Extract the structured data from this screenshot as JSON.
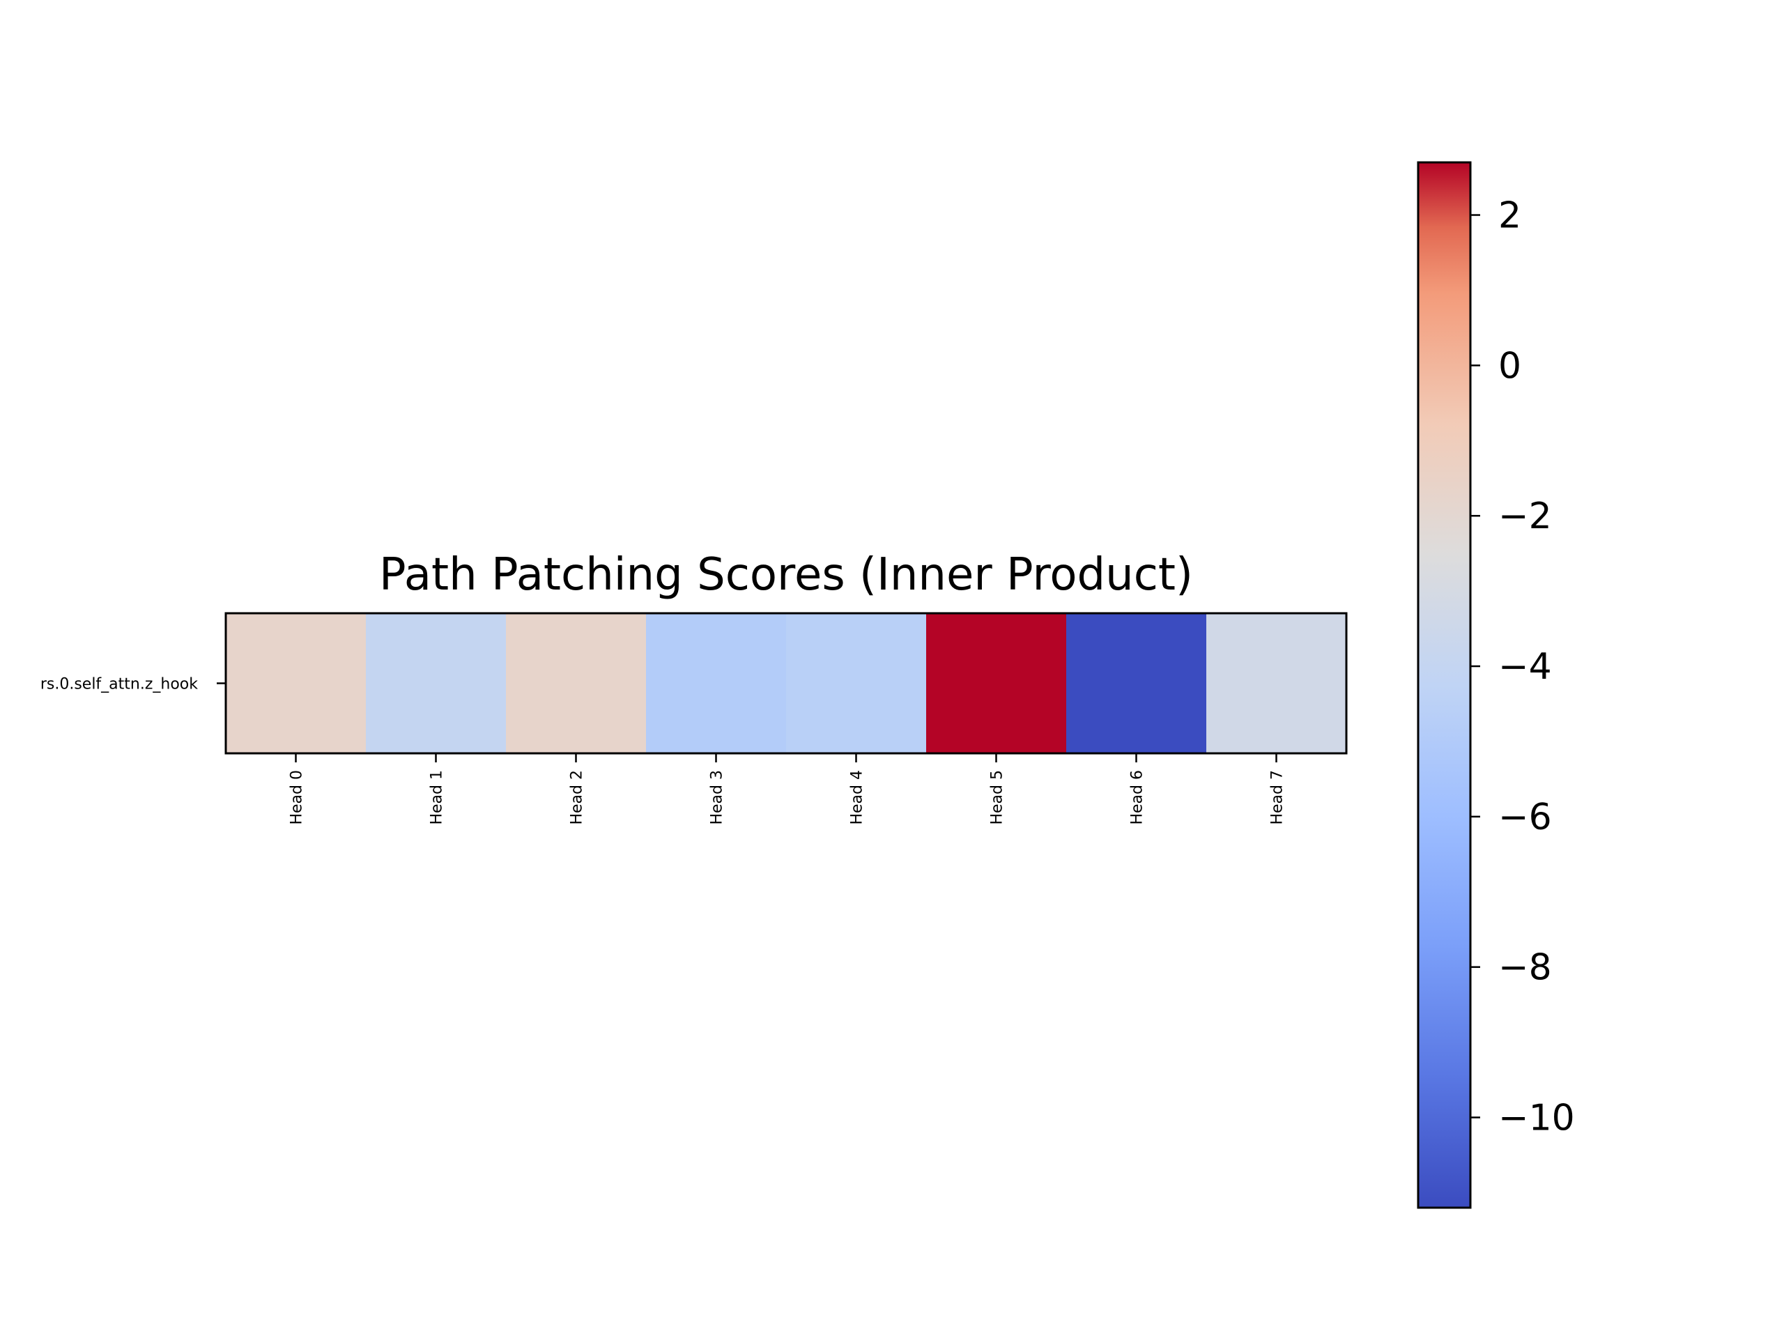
{
  "chart_data": {
    "type": "heatmap",
    "title": "Path Patching Scores (Inner Product)",
    "xlabel": "",
    "ylabel": "",
    "row_labels": [
      "rs.0.self_attn.z_hook"
    ],
    "col_labels": [
      "Head 0",
      "Head 1",
      "Head 2",
      "Head 3",
      "Head 4",
      "Head 5",
      "Head 6",
      "Head 7"
    ],
    "values": [
      [
        -1.7,
        -4.0,
        -1.7,
        -4.9,
        -4.6,
        2.7,
        -11.2,
        -3.3
      ]
    ],
    "colormap": "coolwarm",
    "vmin": -11.2,
    "vmax": 2.7,
    "colorbar_ticks": [
      2,
      0,
      -2,
      -4,
      -6,
      -8,
      -10
    ],
    "colorbar_tick_labels": [
      "2",
      "0",
      "−2",
      "−4",
      "−6",
      "−8",
      "−10"
    ]
  }
}
